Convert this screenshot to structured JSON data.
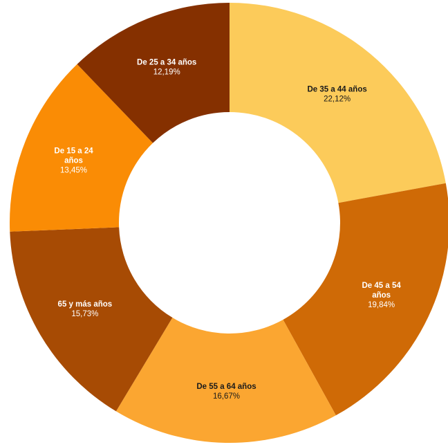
{
  "chart_data": {
    "type": "pie",
    "variant": "donut",
    "title": "",
    "slices": [
      {
        "label": "De 35 a 44 años",
        "label_lines": [
          "De 35 a 44 años"
        ],
        "value": 22.12,
        "value_label": "22,12%",
        "color": "#fccb5a",
        "text_color": "#1a1a1a"
      },
      {
        "label": "De 45 a 54 años",
        "label_lines": [
          "De 45 a 54",
          "años"
        ],
        "value": 19.84,
        "value_label": "19,84%",
        "color": "#cf6a06",
        "text_color": "#ffffff"
      },
      {
        "label": "De 55 a 64 años",
        "label_lines": [
          "De 55 a 64 años"
        ],
        "value": 16.67,
        "value_label": "16,67%",
        "color": "#fba631",
        "text_color": "#1a1a1a"
      },
      {
        "label": "65 y más años",
        "label_lines": [
          "65 y más años"
        ],
        "value": 15.73,
        "value_label": "15,73%",
        "color": "#a74b04",
        "text_color": "#ffffff"
      },
      {
        "label": "De 15 a 24 años",
        "label_lines": [
          "De 15 a 24",
          "años"
        ],
        "value": 13.45,
        "value_label": "13,45%",
        "color": "#fa8c05",
        "text_color": "#ffffff"
      },
      {
        "label": "De 25 a 34 años",
        "label_lines": [
          "De 25 a 34 años"
        ],
        "value": 12.19,
        "value_label": "12,19%",
        "color": "#853000",
        "text_color": "#ffffff"
      }
    ]
  }
}
